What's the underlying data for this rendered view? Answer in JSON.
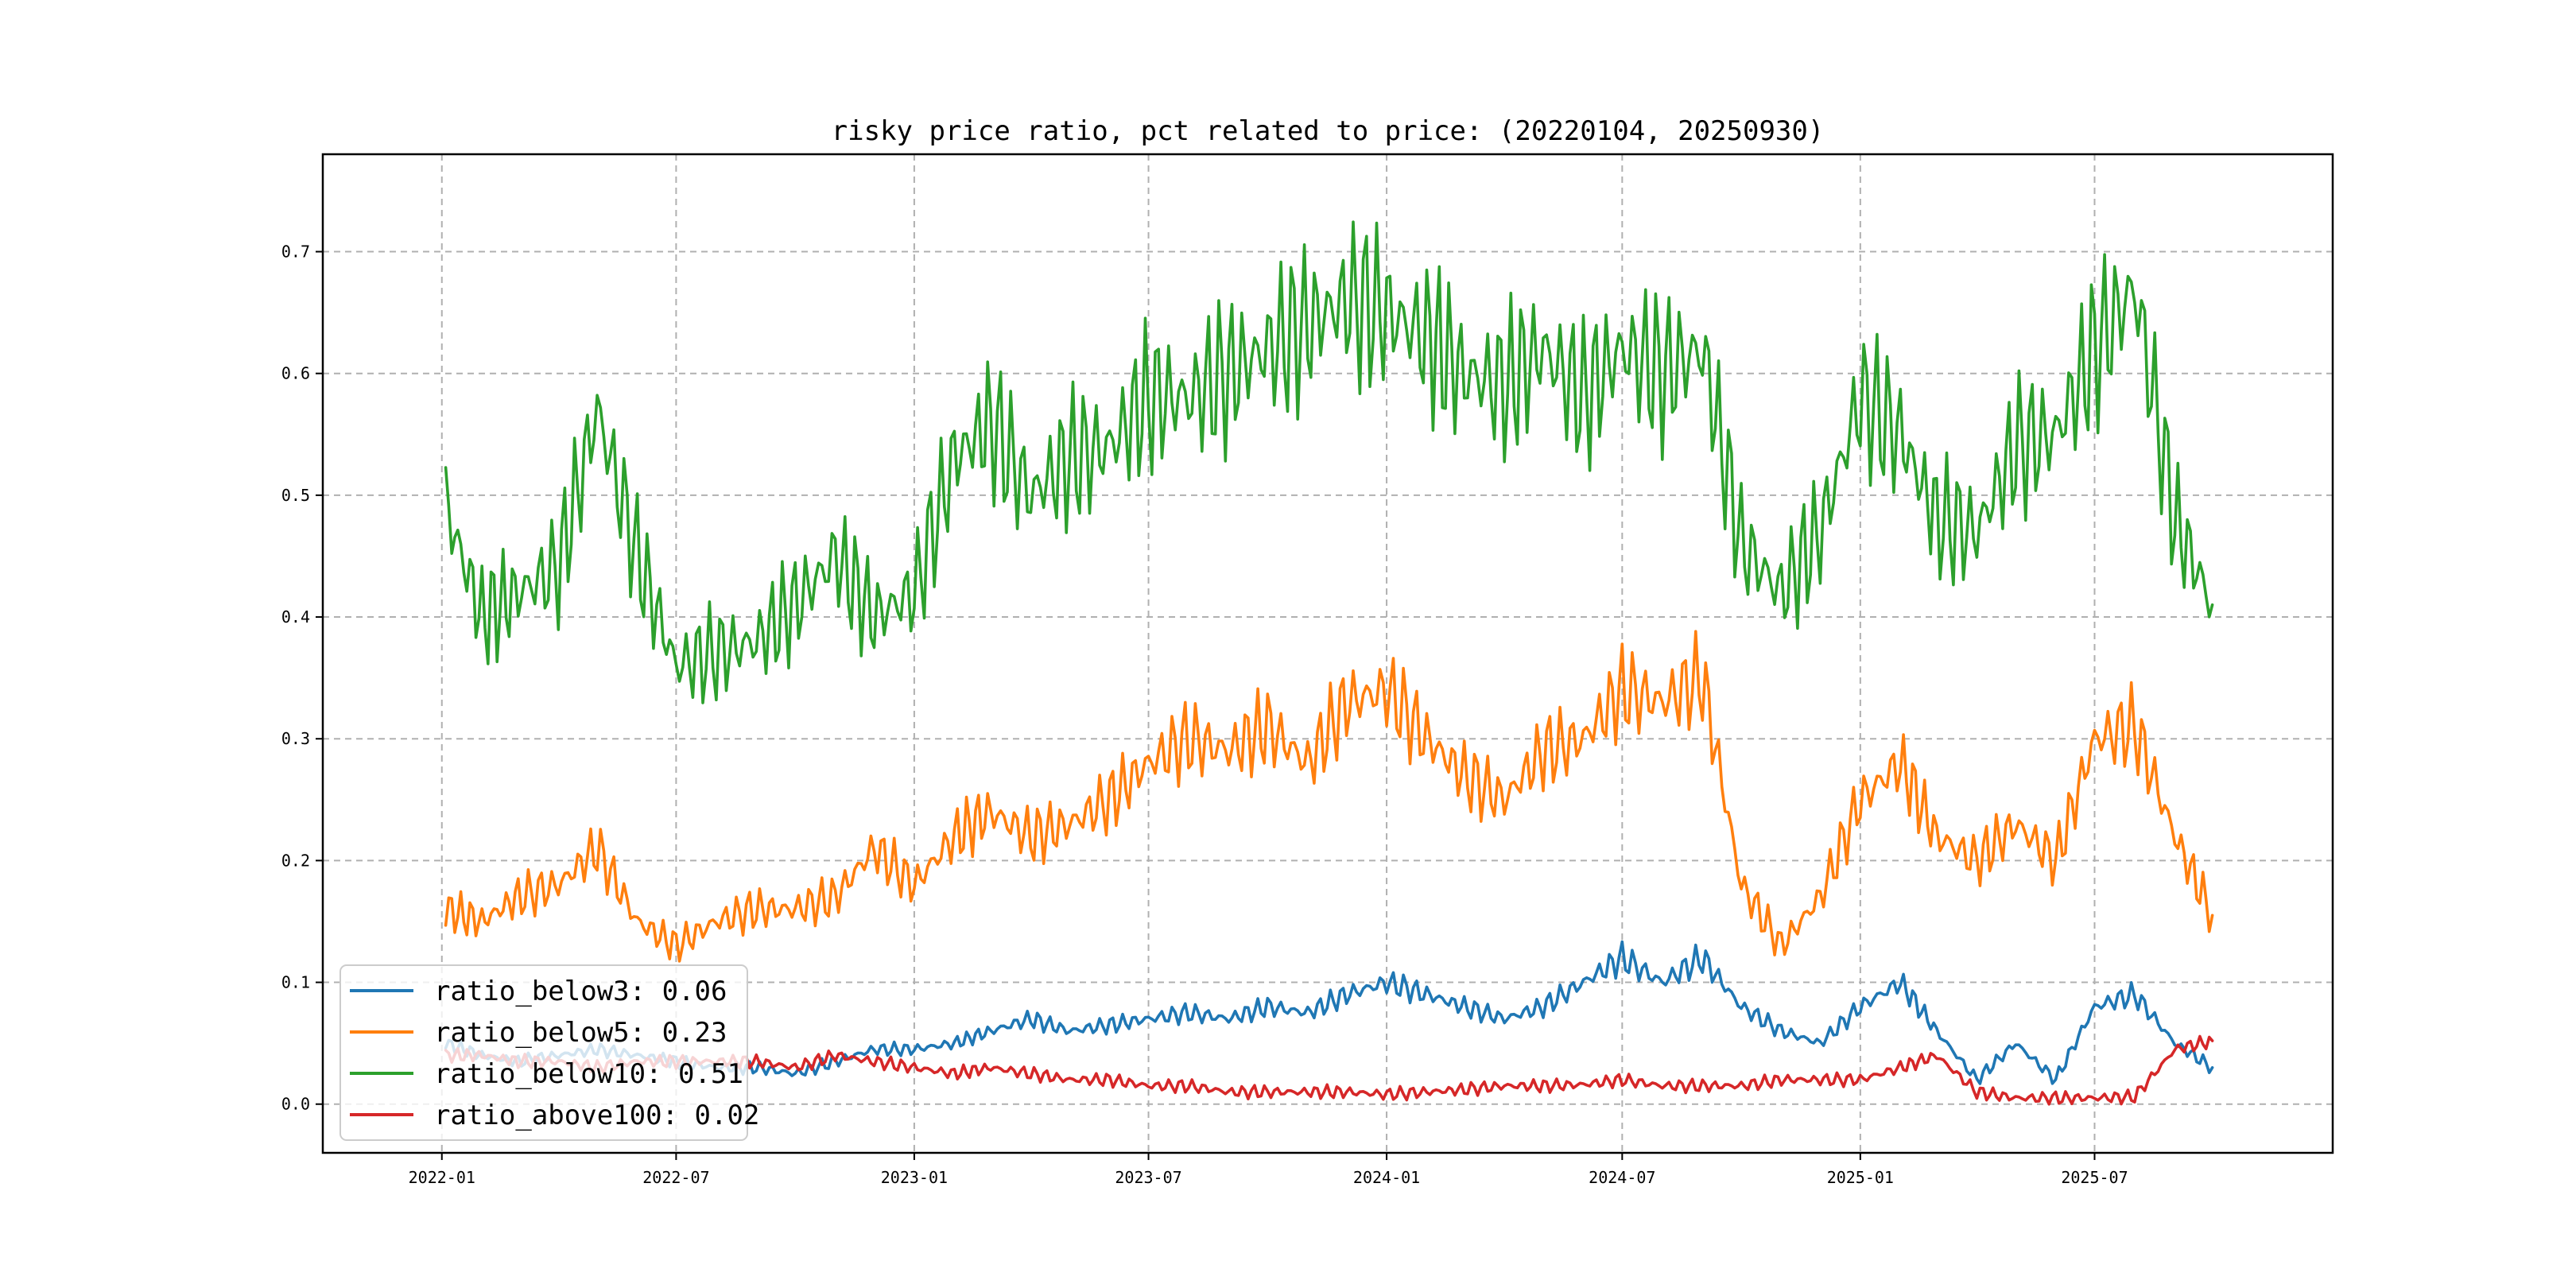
{
  "chart_data": {
    "type": "line",
    "title": "risky price ratio, pct related to price: (20220104, 20250930)",
    "xlabel": "",
    "ylabel": "",
    "date_range": [
      "2022-01-04",
      "2025-09-30"
    ],
    "xlim": [
      "2021-10-01",
      "2026-01-01"
    ],
    "ylim": [
      -0.04,
      0.78
    ],
    "x_ticks": [
      "2022-01",
      "2022-07",
      "2023-01",
      "2023-07",
      "2024-01",
      "2024-07",
      "2025-01",
      "2025-07"
    ],
    "y_ticks": [
      "0.0",
      "0.1",
      "0.2",
      "0.3",
      "0.4",
      "0.5",
      "0.6",
      "0.7"
    ],
    "grid": true,
    "legend_position": "lower-left",
    "x": [
      "2022-01-04",
      "2022-02-01",
      "2022-03-01",
      "2022-04-01",
      "2022-05-01",
      "2022-06-01",
      "2022-07-01",
      "2022-08-01",
      "2022-09-01",
      "2022-10-01",
      "2022-11-01",
      "2022-12-01",
      "2023-01-01",
      "2023-02-01",
      "2023-03-01",
      "2023-04-01",
      "2023-05-01",
      "2023-06-01",
      "2023-07-01",
      "2023-08-01",
      "2023-09-01",
      "2023-10-01",
      "2023-11-01",
      "2023-12-01",
      "2024-01-01",
      "2024-02-01",
      "2024-03-01",
      "2024-04-01",
      "2024-05-01",
      "2024-06-01",
      "2024-07-01",
      "2024-08-01",
      "2024-09-01",
      "2024-10-01",
      "2024-11-01",
      "2024-12-01",
      "2025-01-01",
      "2025-02-01",
      "2025-03-01",
      "2025-04-01",
      "2025-05-01",
      "2025-06-01",
      "2025-07-01",
      "2025-08-01",
      "2025-09-01",
      "2025-09-30"
    ],
    "series": [
      {
        "name": "ratio_below3",
        "legend_value": "0.06",
        "label": "ratio_below3: 0.06",
        "color": "#1f77b4",
        "values": [
          0.05,
          0.04,
          0.035,
          0.04,
          0.045,
          0.04,
          0.035,
          0.03,
          0.03,
          0.025,
          0.035,
          0.045,
          0.045,
          0.05,
          0.06,
          0.07,
          0.06,
          0.065,
          0.07,
          0.075,
          0.07,
          0.08,
          0.075,
          0.09,
          0.1,
          0.09,
          0.08,
          0.07,
          0.08,
          0.1,
          0.12,
          0.1,
          0.12,
          0.08,
          0.06,
          0.05,
          0.08,
          0.1,
          0.06,
          0.02,
          0.05,
          0.02,
          0.08,
          0.09,
          0.05,
          0.03
        ]
      },
      {
        "name": "ratio_below5",
        "legend_value": "0.23",
        "label": "ratio_below5: 0.23",
        "color": "#ff7f0e",
        "values": [
          0.16,
          0.15,
          0.17,
          0.18,
          0.21,
          0.15,
          0.13,
          0.15,
          0.16,
          0.16,
          0.17,
          0.21,
          0.18,
          0.22,
          0.24,
          0.22,
          0.23,
          0.25,
          0.28,
          0.3,
          0.29,
          0.31,
          0.28,
          0.33,
          0.34,
          0.3,
          0.27,
          0.25,
          0.29,
          0.3,
          0.34,
          0.33,
          0.35,
          0.18,
          0.13,
          0.17,
          0.25,
          0.28,
          0.22,
          0.2,
          0.23,
          0.2,
          0.3,
          0.31,
          0.22,
          0.155
        ]
      },
      {
        "name": "ratio_below10",
        "legend_value": "0.51",
        "label": "ratio_below10: 0.51",
        "color": "#2ca02c",
        "values": [
          0.49,
          0.4,
          0.42,
          0.44,
          0.57,
          0.45,
          0.36,
          0.37,
          0.38,
          0.41,
          0.45,
          0.4,
          0.42,
          0.53,
          0.56,
          0.5,
          0.53,
          0.54,
          0.58,
          0.58,
          0.6,
          0.62,
          0.64,
          0.66,
          0.65,
          0.63,
          0.6,
          0.59,
          0.62,
          0.58,
          0.62,
          0.6,
          0.62,
          0.46,
          0.42,
          0.47,
          0.58,
          0.55,
          0.48,
          0.47,
          0.54,
          0.55,
          0.62,
          0.67,
          0.48,
          0.41
        ]
      },
      {
        "name": "ratio_above100",
        "legend_value": "0.02",
        "label": "ratio_above100: 0.02",
        "color": "#d62728",
        "values": [
          0.04,
          0.04,
          0.035,
          0.035,
          0.03,
          0.035,
          0.035,
          0.035,
          0.035,
          0.03,
          0.04,
          0.035,
          0.03,
          0.025,
          0.03,
          0.025,
          0.02,
          0.02,
          0.015,
          0.015,
          0.01,
          0.01,
          0.01,
          0.01,
          0.008,
          0.01,
          0.012,
          0.015,
          0.015,
          0.016,
          0.02,
          0.015,
          0.015,
          0.015,
          0.02,
          0.02,
          0.02,
          0.03,
          0.04,
          0.01,
          0.005,
          0.005,
          0.005,
          0.006,
          0.045,
          0.052
        ]
      }
    ]
  }
}
